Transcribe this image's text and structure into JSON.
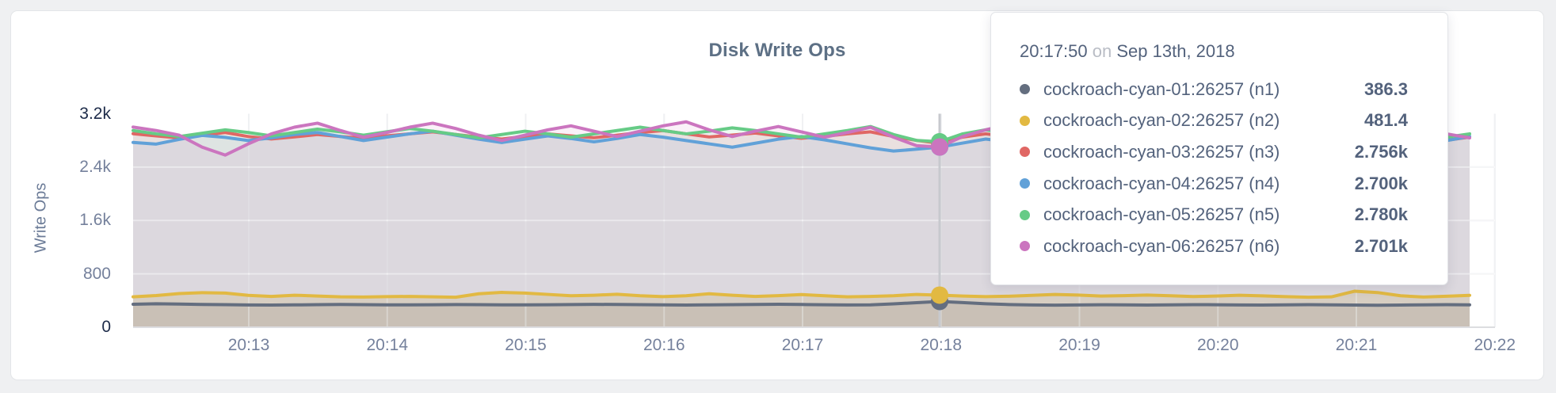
{
  "tooltip": {
    "time": "20:17:50",
    "conjunction": "on",
    "date": "Sep 13th, 2018"
  },
  "chart_data": {
    "type": "area",
    "title": "Disk Write Ops",
    "ylabel": "Write Ops",
    "ylim": [
      0,
      3200
    ],
    "grid": true,
    "legend_position": "tooltip",
    "x_ticks": [
      "20:13",
      "20:14",
      "20:15",
      "20:16",
      "20:17",
      "20:18",
      "20:19",
      "20:20",
      "20:21",
      "20:22"
    ],
    "y_ticks": [
      {
        "label": "3.2k",
        "value": 3200,
        "emphasis": true
      },
      {
        "label": "2.4k",
        "value": 2400,
        "emphasis": false
      },
      {
        "label": "1.6k",
        "value": 1600,
        "emphasis": false
      },
      {
        "label": "800",
        "value": 800,
        "emphasis": false
      },
      {
        "label": "0",
        "value": 0,
        "emphasis": true
      }
    ],
    "x_start": "20:12:00",
    "x_step_seconds": 10,
    "highlight_index": 35,
    "highlight_time": "20:17:50",
    "series": [
      {
        "name": "cockroach-cyan-01:26257 (n1)",
        "short": "n1",
        "color": "#646e7f",
        "highlight_label": "386.3",
        "values": [
          345,
          352,
          348,
          342,
          338,
          334,
          332,
          335,
          338,
          341,
          339,
          336,
          335,
          337,
          340,
          338,
          336,
          335,
          337,
          340,
          343,
          341,
          338,
          335,
          333,
          336,
          339,
          342,
          344,
          341,
          337,
          334,
          336,
          350,
          368,
          386.3,
          370,
          352,
          340,
          334,
          331,
          334,
          337,
          335,
          333,
          336,
          339,
          337,
          334,
          332,
          335,
          338,
          336,
          333,
          330,
          333,
          336,
          339,
          336
        ]
      },
      {
        "name": "cockroach-cyan-02:26257 (n2)",
        "short": "n2",
        "color": "#e2b942",
        "highlight_label": "481.4",
        "values": [
          455,
          475,
          505,
          518,
          512,
          478,
          462,
          480,
          468,
          455,
          452,
          458,
          462,
          455,
          450,
          502,
          522,
          512,
          492,
          472,
          480,
          494,
          472,
          458,
          472,
          502,
          480,
          462,
          474,
          490,
          472,
          455,
          462,
          472,
          492,
          481.4,
          468,
          458,
          465,
          478,
          492,
          482,
          468,
          474,
          482,
          472,
          460,
          468,
          480,
          470,
          458,
          450,
          455,
          540,
          520,
          472,
          452,
          465,
          478
        ]
      },
      {
        "name": "cockroach-cyan-03:26257 (n3)",
        "short": "n3",
        "color": "#e06764",
        "highlight_label": "2.756k",
        "values": [
          2900,
          2868,
          2838,
          2878,
          2918,
          2858,
          2822,
          2852,
          2888,
          2858,
          2832,
          2868,
          2898,
          2928,
          2888,
          2850,
          2820,
          2860,
          2898,
          2868,
          2840,
          2878,
          2918,
          2948,
          2898,
          2852,
          2880,
          2910,
          2868,
          2832,
          2860,
          2898,
          2928,
          2858,
          2800,
          2756,
          2850,
          2898,
          2858,
          2820,
          2868,
          2908,
          2878,
          2840,
          2878,
          2918,
          2888,
          2850,
          2822,
          2860,
          2898,
          2868,
          2832,
          2868,
          2908,
          2878,
          2840,
          2802,
          2850
        ]
      },
      {
        "name": "cockroach-cyan-04:26257 (n4)",
        "short": "n4",
        "color": "#61a1d8",
        "highlight_label": "2.700k",
        "values": [
          2770,
          2745,
          2815,
          2875,
          2845,
          2798,
          2838,
          2888,
          2918,
          2858,
          2798,
          2848,
          2898,
          2938,
          2878,
          2818,
          2768,
          2818,
          2868,
          2828,
          2778,
          2828,
          2888,
          2848,
          2798,
          2748,
          2698,
          2758,
          2818,
          2858,
          2808,
          2748,
          2688,
          2640,
          2668,
          2700,
          2760,
          2820,
          2778,
          2728,
          2778,
          2838,
          2798,
          2748,
          2798,
          2858,
          2818,
          2768,
          2818,
          2878,
          2838,
          2788,
          2838,
          2888,
          2848,
          2798,
          2748,
          2798,
          2858
        ]
      },
      {
        "name": "cockroach-cyan-05:26257 (n5)",
        "short": "n5",
        "color": "#66cb86",
        "highlight_label": "2.780k",
        "values": [
          2948,
          2898,
          2858,
          2908,
          2958,
          2918,
          2868,
          2918,
          2968,
          2928,
          2878,
          2928,
          2978,
          2938,
          2888,
          2838,
          2888,
          2938,
          2898,
          2848,
          2898,
          2948,
          2998,
          2948,
          2898,
          2938,
          2988,
          2948,
          2898,
          2848,
          2898,
          2948,
          3008,
          2888,
          2800,
          2780,
          2898,
          2958,
          2918,
          2868,
          2918,
          2968,
          2928,
          2878,
          2918,
          2968,
          3018,
          2958,
          2898,
          2938,
          2988,
          2948,
          2898,
          2938,
          2988,
          2948,
          2898,
          2848,
          2898
        ]
      },
      {
        "name": "cockroach-cyan-06:26257 (n6)",
        "short": "n6",
        "color": "#cb75bf",
        "highlight_label": "2.701k",
        "values": [
          3000,
          2948,
          2878,
          2698,
          2580,
          2748,
          2898,
          2998,
          3058,
          2948,
          2848,
          2918,
          2998,
          3058,
          2978,
          2878,
          2798,
          2878,
          2958,
          3018,
          2938,
          2858,
          2938,
          3018,
          3078,
          2958,
          2858,
          2938,
          3008,
          2928,
          2848,
          2918,
          2998,
          2848,
          2720,
          2701,
          2858,
          2958,
          3038,
          3098,
          2948,
          2838,
          2898,
          2978,
          2898,
          2818,
          2888,
          2958,
          3028,
          2948,
          2868,
          2928,
          2998,
          2918,
          2838,
          2898,
          2968,
          2898,
          2838
        ]
      }
    ]
  },
  "colors": {
    "page_bg": "#eff0f2",
    "card_bg": "#ffffff",
    "card_border": "#e3e5e8",
    "title_text": "#5d7085",
    "tick_text": "#75819c",
    "tick_text_emphasis": "#1d2b49",
    "grid": "#e7e8ec",
    "hover_line": "#c7c9ce",
    "tooltip_text": "#53627c",
    "tooltip_muted": "#b9bdc5"
  }
}
